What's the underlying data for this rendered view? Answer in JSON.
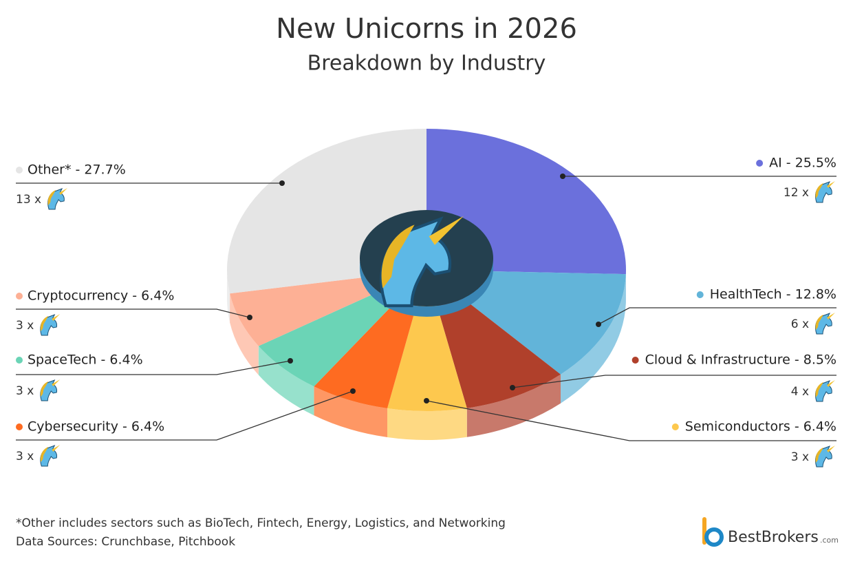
{
  "chart_data": {
    "type": "pie",
    "title": "New Unicorns in 2026",
    "subtitle": "Breakdown by Industry",
    "values": [
      25.5,
      12.8,
      8.5,
      6.4,
      6.4,
      6.4,
      6.4,
      27.7
    ],
    "value_labels": [
      "AI - 25.5%",
      "HealthTech - 12.8%",
      "Cloud & Infrastructure - 8.5%",
      "Semiconductors - 6.4%",
      "Cybersecurity - 6.4%",
      "SpaceTech - 6.4%",
      "Cryptocurrency - 6.4%",
      "Other* - 27.7%"
    ],
    "count_labels": [
      "12 x",
      "6 x",
      "4 x",
      "3 x",
      "3 x",
      "3 x",
      "3 x",
      "13 x"
    ],
    "colors": [
      "#6b70dc",
      "#62b4d9",
      "#b0402b",
      "#fdc84e",
      "#fe6b21",
      "#6bd4b6",
      "#fdb095",
      "#e5e5e5"
    ],
    "footnote": "*Other includes sectors such as BioTech, Fintech, Energy, Logistics, and Networking",
    "sources": "Data Sources: Crunchbase, Pitchbook"
  },
  "brand": {
    "name": "BestBrokers",
    "suffix": ".com"
  }
}
